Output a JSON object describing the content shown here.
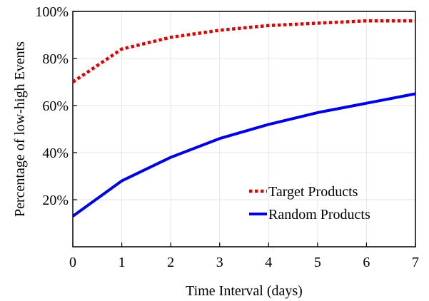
{
  "chart_data": {
    "type": "line",
    "title": "",
    "xlabel": "Time Interval (days)",
    "ylabel": "Percentage of low-high Events",
    "x": [
      0,
      1,
      2,
      3,
      4,
      5,
      6,
      7
    ],
    "xlim": [
      0,
      7
    ],
    "ylim": [
      0,
      100
    ],
    "x_ticks": [
      "0",
      "1",
      "2",
      "3",
      "4",
      "5",
      "6",
      "7"
    ],
    "y_ticks": [
      {
        "value": 20,
        "label": "20%"
      },
      {
        "value": 40,
        "label": "40%"
      },
      {
        "value": 60,
        "label": "60%"
      },
      {
        "value": 80,
        "label": "80%"
      },
      {
        "value": 100,
        "label": "100%"
      }
    ],
    "grid": true,
    "legend_position": "bottom-right",
    "series": [
      {
        "name": "Target Products",
        "values": [
          70,
          84,
          89,
          92,
          94,
          95,
          96,
          96
        ],
        "color": "#e00000",
        "style": "dotted"
      },
      {
        "name": "Random Products",
        "values": [
          13,
          28,
          38,
          46,
          52,
          57,
          61,
          65
        ],
        "color": "#0000e6",
        "style": "solid"
      }
    ]
  }
}
